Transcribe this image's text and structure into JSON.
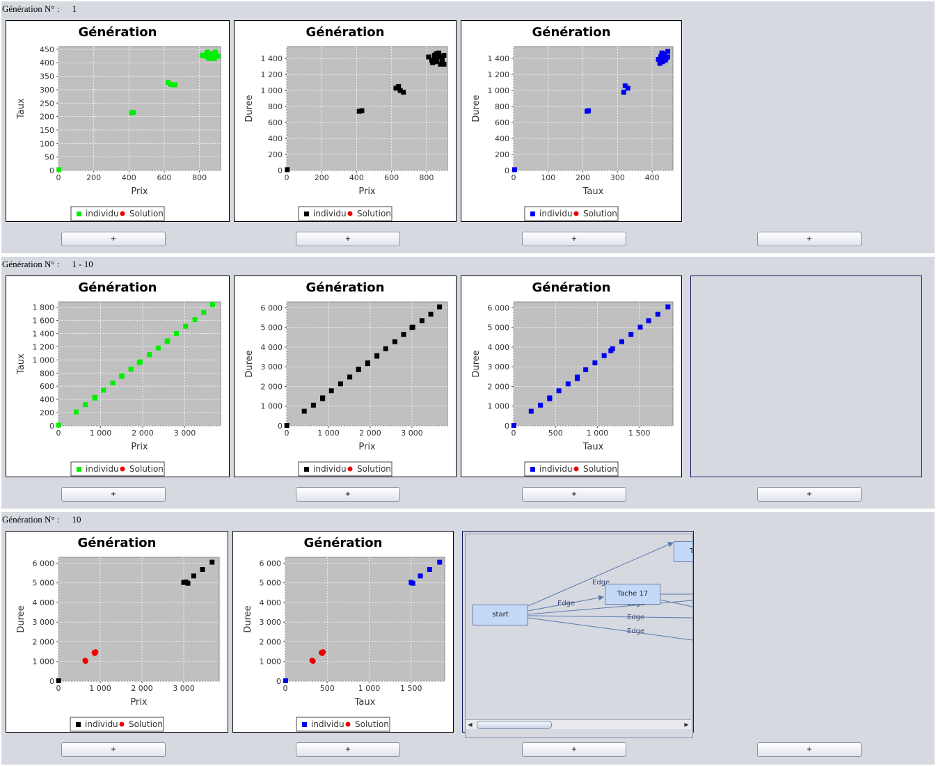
{
  "sections": [
    {
      "label": "Génération N° :",
      "value": "1"
    },
    {
      "label": "Génération N° :",
      "value": "1 - 10"
    },
    {
      "label": "Génération N° :",
      "value": "10"
    }
  ],
  "button_label": "+",
  "legend": {
    "individu": "individu",
    "solution": "Solution"
  },
  "colors": {
    "green": "#00ee00",
    "black": "#000000",
    "blue": "#0000ee",
    "red": "#ee0000",
    "plot_bg": "#c0c0c0"
  },
  "graph": {
    "nodes": [
      "start",
      "Tache 17",
      "T"
    ],
    "edges": [
      "Edge",
      "Edge",
      "Edge",
      "Edge",
      "Edge"
    ]
  },
  "chart_data": [
    {
      "type": "scatter",
      "title": "Génération",
      "xlabel": "Prix",
      "ylabel": "Taux",
      "color": "green",
      "xlim": [
        0,
        920
      ],
      "ylim": [
        0,
        460
      ],
      "grid": true,
      "legend": "bottom",
      "xticks": [
        {
          "v": 0,
          "t": "0"
        },
        {
          "v": 200,
          "t": "200"
        },
        {
          "v": 400,
          "t": "400"
        },
        {
          "v": 600,
          "t": "600"
        },
        {
          "v": 800,
          "t": "800"
        }
      ],
      "yticks": [
        {
          "v": 0,
          "t": "0"
        },
        {
          "v": 50,
          "t": "50"
        },
        {
          "v": 100,
          "t": "100"
        },
        {
          "v": 150,
          "t": "150"
        },
        {
          "v": 200,
          "t": "200"
        },
        {
          "v": 250,
          "t": "250"
        },
        {
          "v": 300,
          "t": "300"
        },
        {
          "v": 350,
          "t": "350"
        },
        {
          "v": 400,
          "t": "400"
        },
        {
          "v": 450,
          "t": "450"
        }
      ],
      "individu": [
        [
          3,
          3
        ],
        [
          415,
          214
        ],
        [
          425,
          216
        ],
        [
          622,
          327
        ],
        [
          635,
          320
        ],
        [
          648,
          318
        ],
        [
          662,
          318
        ],
        [
          815,
          428
        ],
        [
          830,
          425
        ],
        [
          840,
          432
        ],
        [
          850,
          418
        ],
        [
          860,
          426
        ],
        [
          870,
          434
        ],
        [
          880,
          422
        ],
        [
          890,
          440
        ],
        [
          895,
          428
        ],
        [
          905,
          424
        ],
        [
          885,
          416
        ],
        [
          860,
          416
        ],
        [
          845,
          440
        ]
      ],
      "solution": []
    },
    {
      "type": "scatter",
      "title": "Génération",
      "xlabel": "Prix",
      "ylabel": "Duree",
      "color": "black",
      "xlim": [
        0,
        920
      ],
      "ylim": [
        0,
        1550
      ],
      "grid": true,
      "legend": "bottom",
      "xticks": [
        {
          "v": 0,
          "t": "0"
        },
        {
          "v": 200,
          "t": "200"
        },
        {
          "v": 400,
          "t": "400"
        },
        {
          "v": 600,
          "t": "600"
        },
        {
          "v": 800,
          "t": "800"
        }
      ],
      "yticks": [
        {
          "v": 0,
          "t": "0"
        },
        {
          "v": 200,
          "t": "200"
        },
        {
          "v": 400,
          "t": "400"
        },
        {
          "v": 600,
          "t": "600"
        },
        {
          "v": 800,
          "t": "800"
        },
        {
          "v": 1000,
          "t": "1 000"
        },
        {
          "v": 1200,
          "t": "1 200"
        },
        {
          "v": 1400,
          "t": "1 400"
        }
      ],
      "individu": [
        [
          3,
          10
        ],
        [
          415,
          740
        ],
        [
          430,
          748
        ],
        [
          625,
          1030
        ],
        [
          640,
          1050
        ],
        [
          650,
          1000
        ],
        [
          668,
          980
        ],
        [
          812,
          1420
        ],
        [
          830,
          1380
        ],
        [
          845,
          1440
        ],
        [
          855,
          1400
        ],
        [
          860,
          1360
        ],
        [
          870,
          1470
        ],
        [
          880,
          1420
        ],
        [
          890,
          1390
        ],
        [
          900,
          1440
        ],
        [
          880,
          1330
        ],
        [
          855,
          1460
        ],
        [
          900,
          1330
        ],
        [
          835,
          1350
        ]
      ],
      "solution": []
    },
    {
      "type": "scatter",
      "title": "Génération",
      "xlabel": "Taux",
      "ylabel": "Duree",
      "color": "blue",
      "xlim": [
        0,
        460
      ],
      "ylim": [
        0,
        1550
      ],
      "grid": true,
      "legend": "bottom",
      "xticks": [
        {
          "v": 0,
          "t": "0"
        },
        {
          "v": 100,
          "t": "100"
        },
        {
          "v": 200,
          "t": "200"
        },
        {
          "v": 300,
          "t": "300"
        },
        {
          "v": 400,
          "t": "400"
        }
      ],
      "yticks": [
        {
          "v": 0,
          "t": "0"
        },
        {
          "v": 200,
          "t": "200"
        },
        {
          "v": 400,
          "t": "400"
        },
        {
          "v": 600,
          "t": "600"
        },
        {
          "v": 800,
          "t": "800"
        },
        {
          "v": 1000,
          "t": "1 000"
        },
        {
          "v": 1200,
          "t": "1 200"
        },
        {
          "v": 1400,
          "t": "1 400"
        }
      ],
      "individu": [
        [
          3,
          10
        ],
        [
          212,
          740
        ],
        [
          216,
          748
        ],
        [
          318,
          980
        ],
        [
          322,
          1060
        ],
        [
          330,
          1030
        ],
        [
          418,
          1390
        ],
        [
          425,
          1430
        ],
        [
          430,
          1360
        ],
        [
          435,
          1460
        ],
        [
          440,
          1400
        ],
        [
          428,
          1470
        ],
        [
          445,
          1420
        ],
        [
          422,
          1340
        ],
        [
          432,
          1420
        ],
        [
          438,
          1380
        ],
        [
          445,
          1490
        ]
      ],
      "solution": []
    },
    {
      "type": "scatter",
      "title": "Génération",
      "xlabel": "Prix",
      "ylabel": "Taux",
      "color": "green",
      "xlim": [
        0,
        3850
      ],
      "ylim": [
        0,
        1880
      ],
      "grid": true,
      "legend": "bottom",
      "xticks": [
        {
          "v": 0,
          "t": "0"
        },
        {
          "v": 1000,
          "t": "1 000"
        },
        {
          "v": 2000,
          "t": "2 000"
        },
        {
          "v": 3000,
          "t": "3 000"
        }
      ],
      "yticks": [
        {
          "v": 0,
          "t": "0"
        },
        {
          "v": 200,
          "t": "200"
        },
        {
          "v": 400,
          "t": "400"
        },
        {
          "v": 600,
          "t": "600"
        },
        {
          "v": 800,
          "t": "800"
        },
        {
          "v": 1000,
          "t": "1 000"
        },
        {
          "v": 1200,
          "t": "1 200"
        },
        {
          "v": 1400,
          "t": "1 400"
        },
        {
          "v": 1600,
          "t": "1 600"
        },
        {
          "v": 1800,
          "t": "1 800"
        }
      ],
      "individu": [
        [
          3,
          10
        ],
        [
          420,
          210
        ],
        [
          640,
          320
        ],
        [
          860,
          430
        ],
        [
          1070,
          540
        ],
        [
          1290,
          650
        ],
        [
          1510,
          760
        ],
        [
          1720,
          860
        ],
        [
          1940,
          970
        ],
        [
          2160,
          1080
        ],
        [
          2370,
          1180
        ],
        [
          2590,
          1290
        ],
        [
          2800,
          1400
        ],
        [
          3020,
          1510
        ],
        [
          3240,
          1610
        ],
        [
          3450,
          1720
        ],
        [
          3660,
          1840
        ],
        [
          1500,
          750
        ],
        [
          2580,
          1280
        ],
        [
          870,
          420
        ],
        [
          1920,
          960
        ]
      ],
      "solution": []
    },
    {
      "type": "scatter",
      "title": "Génération",
      "xlabel": "Prix",
      "ylabel": "Duree",
      "color": "black",
      "xlim": [
        0,
        3850
      ],
      "ylim": [
        0,
        6300
      ],
      "grid": true,
      "legend": "bottom",
      "xticks": [
        {
          "v": 0,
          "t": "0"
        },
        {
          "v": 1000,
          "t": "1 000"
        },
        {
          "v": 2000,
          "t": "2 000"
        },
        {
          "v": 3000,
          "t": "3 000"
        }
      ],
      "yticks": [
        {
          "v": 0,
          "t": "0"
        },
        {
          "v": 1000,
          "t": "1 000"
        },
        {
          "v": 2000,
          "t": "2 000"
        },
        {
          "v": 3000,
          "t": "3 000"
        },
        {
          "v": 4000,
          "t": "4 000"
        },
        {
          "v": 5000,
          "t": "5 000"
        },
        {
          "v": 6000,
          "t": "6 000"
        }
      ],
      "individu": [
        [
          3,
          20
        ],
        [
          420,
          740
        ],
        [
          640,
          1050
        ],
        [
          860,
          1420
        ],
        [
          1070,
          1780
        ],
        [
          1290,
          2130
        ],
        [
          1510,
          2480
        ],
        [
          1720,
          2850
        ],
        [
          1940,
          3200
        ],
        [
          2160,
          3570
        ],
        [
          2370,
          3920
        ],
        [
          2590,
          4280
        ],
        [
          2800,
          4650
        ],
        [
          3020,
          5020
        ],
        [
          3240,
          5350
        ],
        [
          3450,
          5680
        ],
        [
          3660,
          6050
        ],
        [
          860,
          1380
        ],
        [
          1940,
          3160
        ],
        [
          2160,
          3540
        ],
        [
          3000,
          5000
        ],
        [
          1720,
          2880
        ]
      ],
      "solution": []
    },
    {
      "type": "scatter",
      "title": "Génération",
      "xlabel": "Taux",
      "ylabel": "Duree",
      "color": "blue",
      "xlim": [
        0,
        1900
      ],
      "ylim": [
        0,
        6300
      ],
      "grid": true,
      "legend": "bottom",
      "xticks": [
        {
          "v": 0,
          "t": "0"
        },
        {
          "v": 500,
          "t": "500"
        },
        {
          "v": 1000,
          "t": "1 000"
        },
        {
          "v": 1500,
          "t": "1 500"
        }
      ],
      "yticks": [
        {
          "v": 0,
          "t": "0"
        },
        {
          "v": 1000,
          "t": "1 000"
        },
        {
          "v": 2000,
          "t": "2 000"
        },
        {
          "v": 3000,
          "t": "3 000"
        },
        {
          "v": 4000,
          "t": "4 000"
        },
        {
          "v": 5000,
          "t": "5 000"
        },
        {
          "v": 6000,
          "t": "6 000"
        }
      ],
      "individu": [
        [
          3,
          20
        ],
        [
          210,
          740
        ],
        [
          320,
          1050
        ],
        [
          430,
          1420
        ],
        [
          540,
          1780
        ],
        [
          650,
          2130
        ],
        [
          760,
          2480
        ],
        [
          860,
          2850
        ],
        [
          970,
          3200
        ],
        [
          1080,
          3570
        ],
        [
          1180,
          3920
        ],
        [
          1290,
          4280
        ],
        [
          1400,
          4650
        ],
        [
          1510,
          5020
        ],
        [
          1610,
          5350
        ],
        [
          1720,
          5680
        ],
        [
          1840,
          6050
        ],
        [
          1160,
          3820
        ],
        [
          760,
          2400
        ],
        [
          430,
          1380
        ]
      ],
      "solution": []
    },
    {
      "type": "scatter",
      "title": "Génération",
      "xlabel": "Prix",
      "ylabel": "Duree",
      "color": "black",
      "xlim": [
        0,
        3850
      ],
      "ylim": [
        0,
        6300
      ],
      "grid": true,
      "legend": "bottom",
      "xticks": [
        {
          "v": 0,
          "t": "0"
        },
        {
          "v": 1000,
          "t": "1 000"
        },
        {
          "v": 2000,
          "t": "2 000"
        },
        {
          "v": 3000,
          "t": "3 000"
        }
      ],
      "yticks": [
        {
          "v": 0,
          "t": "0"
        },
        {
          "v": 1000,
          "t": "1 000"
        },
        {
          "v": 2000,
          "t": "2 000"
        },
        {
          "v": 3000,
          "t": "3 000"
        },
        {
          "v": 4000,
          "t": "4 000"
        },
        {
          "v": 5000,
          "t": "5 000"
        },
        {
          "v": 6000,
          "t": "6 000"
        }
      ],
      "individu": [
        [
          3,
          20
        ],
        [
          3000,
          5020
        ],
        [
          3050,
          5040
        ],
        [
          3100,
          4980
        ],
        [
          3240,
          5350
        ],
        [
          3450,
          5680
        ],
        [
          3680,
          6050
        ]
      ],
      "solution": [
        [
          640,
          1050
        ],
        [
          650,
          1020
        ],
        [
          860,
          1450
        ],
        [
          870,
          1420
        ],
        [
          890,
          1480
        ]
      ]
    },
    {
      "type": "scatter",
      "title": "Génération",
      "xlabel": "Taux",
      "ylabel": "Duree",
      "color": "blue",
      "xlim": [
        0,
        1900
      ],
      "ylim": [
        0,
        6300
      ],
      "grid": true,
      "legend": "bottom",
      "xticks": [
        {
          "v": 0,
          "t": "0"
        },
        {
          "v": 500,
          "t": "500"
        },
        {
          "v": 1000,
          "t": "1 000"
        },
        {
          "v": 1500,
          "t": "1 500"
        }
      ],
      "yticks": [
        {
          "v": 0,
          "t": "0"
        },
        {
          "v": 1000,
          "t": "1 000"
        },
        {
          "v": 2000,
          "t": "2 000"
        },
        {
          "v": 3000,
          "t": "3 000"
        },
        {
          "v": 4000,
          "t": "4 000"
        },
        {
          "v": 5000,
          "t": "5 000"
        },
        {
          "v": 6000,
          "t": "6 000"
        }
      ],
      "individu": [
        [
          3,
          20
        ],
        [
          1500,
          5020
        ],
        [
          1520,
          4980
        ],
        [
          1610,
          5350
        ],
        [
          1720,
          5680
        ],
        [
          1840,
          6050
        ]
      ],
      "solution": [
        [
          320,
          1050
        ],
        [
          330,
          1020
        ],
        [
          430,
          1450
        ],
        [
          440,
          1420
        ],
        [
          450,
          1480
        ]
      ]
    }
  ]
}
